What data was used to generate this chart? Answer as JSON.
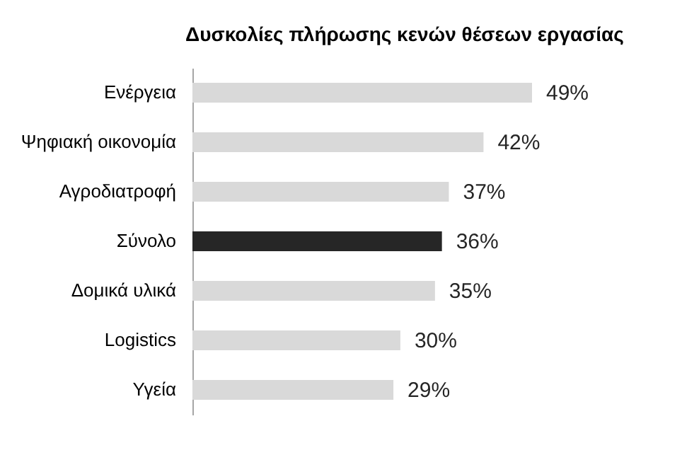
{
  "chart_data": {
    "type": "bar",
    "orientation": "horizontal",
    "title": "Δυσκολίες  πλήρωσης κενών θέσεων εργασίας",
    "categories": [
      "Ενέργεια",
      "Ψηφιακή οικονομία",
      "Αγροδιατροφή",
      "Σύνολο",
      "Δομικά υλικά",
      "Logistics",
      "Υγεία"
    ],
    "values": [
      49,
      42,
      37,
      36,
      35,
      30,
      29
    ],
    "value_labels": [
      "49%",
      "42%",
      "37%",
      "36%",
      "35%",
      "30%",
      "29%"
    ],
    "colors": [
      "#d9d9d9",
      "#d9d9d9",
      "#d9d9d9",
      "#262626",
      "#d9d9d9",
      "#d9d9d9",
      "#d9d9d9"
    ],
    "tick_labels": "y"
  }
}
